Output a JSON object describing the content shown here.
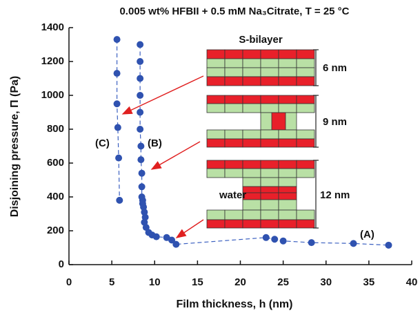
{
  "chart_data": {
    "type": "scatter",
    "title": "0.005 wt% HFBII + 0.5 mM Na₃Citrate, T = 25 °C",
    "x_label": "Film thickness,  h  (nm)",
    "y_label": "Disjoining pressure,  Π (Pa)",
    "xlim": [
      0,
      40
    ],
    "xticks": [
      0,
      5,
      10,
      15,
      20,
      25,
      30,
      35,
      40
    ],
    "ylim": [
      0,
      1400
    ],
    "yticks": [
      0,
      200,
      400,
      600,
      800,
      1000,
      1200,
      1400
    ],
    "color": "#2f52b0",
    "series": [
      {
        "x": [
          5.6,
          5.6,
          5.6,
          5.7,
          5.8,
          5.9
        ],
        "values": [
          1330,
          1130,
          950,
          810,
          630,
          380
        ]
      },
      {
        "x": [
          8.3,
          8.3,
          8.3,
          8.3,
          8.3,
          8.3,
          8.4,
          8.4,
          8.5,
          8.5,
          8.5,
          8.6,
          8.6,
          8.7,
          8.8,
          8.9,
          8.8,
          9.0,
          9.3,
          9.7,
          10.2,
          11.4,
          12.0,
          12.5,
          23.0,
          24.0,
          25.0,
          28.3,
          33.2,
          37.3
        ],
        "values": [
          1300,
          1200,
          1100,
          1000,
          900,
          800,
          700,
          620,
          540,
          460,
          400,
          380,
          360,
          340,
          310,
          280,
          250,
          220,
          190,
          175,
          165,
          160,
          145,
          120,
          160,
          150,
          140,
          130,
          125,
          115
        ]
      }
    ],
    "annotations": [
      "(C)",
      "(B)",
      "(A)",
      "S-bilayer",
      "6 nm",
      "9 nm",
      "12 nm",
      "water"
    ]
  }
}
